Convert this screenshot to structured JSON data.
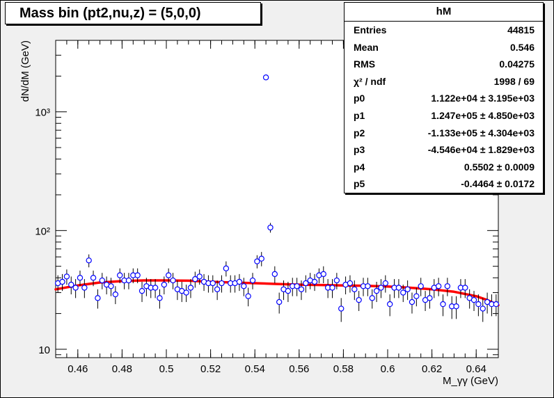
{
  "title": "Mass bin (pt2,nu,z) = (5,0,0)",
  "stats": {
    "name": "hM",
    "rows": [
      {
        "key": "Entries",
        "value": "44815"
      },
      {
        "key": "Mean",
        "value": "0.546"
      },
      {
        "key": "RMS",
        "value": "0.04275"
      },
      {
        "key": "χ² / ndf",
        "value": "1998 / 69"
      },
      {
        "key": "p0",
        "value": "1.122e+04 ± 3.195e+03"
      },
      {
        "key": "p1",
        "value": "1.247e+05 ± 4.850e+03"
      },
      {
        "key": "p2",
        "value": "-1.133e+05 ± 4.304e+03"
      },
      {
        "key": "p3",
        "value": "-4.546e+04 ± 1.829e+03"
      },
      {
        "key": "p4",
        "value": "0.5502 ± 0.0009"
      },
      {
        "key": "p5",
        "value": "-0.4464 ± 0.0172"
      }
    ]
  },
  "chart_data": {
    "type": "scatter",
    "title": "Mass bin (pt2,nu,z) = (5,0,0)",
    "xlabel": "M_γγ (GeV)",
    "ylabel": "dN/dM (GeV)",
    "xlim": [
      0.45,
      0.65
    ],
    "ylim": [
      8.5,
      4000
    ],
    "y_scale": "log",
    "x_ticks": [
      "0.46",
      "0.48",
      "0.5",
      "0.52",
      "0.54",
      "0.56",
      "0.58",
      "0.6",
      "0.62",
      "0.64"
    ],
    "y_ticks": [
      "10",
      "10²",
      "10³"
    ],
    "grid": false,
    "colors": {
      "points": "#0000ff",
      "fit": "#ff0000"
    },
    "series": [
      {
        "x": [
          0.451,
          0.453,
          0.455,
          0.457,
          0.459,
          0.461,
          0.463,
          0.465,
          0.467,
          0.469,
          0.471,
          0.473,
          0.475,
          0.477,
          0.479,
          0.481,
          0.483,
          0.485,
          0.487,
          0.489,
          0.491,
          0.493,
          0.495,
          0.497,
          0.499,
          0.501,
          0.503,
          0.505,
          0.507,
          0.509,
          0.511,
          0.513,
          0.515,
          0.517,
          0.519,
          0.521,
          0.523,
          0.525,
          0.527,
          0.529,
          0.531,
          0.533,
          0.535,
          0.537,
          0.539,
          0.541,
          0.543,
          0.545,
          0.547,
          0.549,
          0.551,
          0.553,
          0.555,
          0.557,
          0.559,
          0.561,
          0.563,
          0.565,
          0.567,
          0.569,
          0.571,
          0.573,
          0.575,
          0.577,
          0.579,
          0.581,
          0.583,
          0.585,
          0.587,
          0.589,
          0.591,
          0.593,
          0.595,
          0.597,
          0.599,
          0.601,
          0.603,
          0.605,
          0.607,
          0.609,
          0.611,
          0.613,
          0.615,
          0.617,
          0.619,
          0.621,
          0.623,
          0.625,
          0.627,
          0.629,
          0.631,
          0.633,
          0.635,
          0.637,
          0.639,
          0.641,
          0.643,
          0.645,
          0.647,
          0.649
        ],
        "y": [
          36,
          37,
          41,
          35,
          33,
          40,
          33,
          56,
          40,
          27,
          38,
          35,
          34,
          29,
          42,
          38,
          38,
          42,
          42,
          31,
          34,
          33,
          33,
          27,
          35,
          42,
          38,
          32,
          31,
          30,
          33,
          39,
          41,
          37,
          36,
          36,
          32,
          36,
          48,
          36,
          36,
          37,
          34,
          28,
          38,
          55,
          58,
          1950,
          106,
          43,
          25,
          32,
          31,
          34,
          34,
          32,
          36,
          38,
          37,
          42,
          43,
          33,
          33,
          38,
          22,
          35,
          36,
          32,
          26,
          34,
          34,
          27,
          31,
          33,
          36,
          24,
          33,
          33,
          30,
          32,
          25,
          28,
          34,
          26,
          27,
          33,
          34,
          24,
          34,
          23,
          23,
          33,
          33,
          27,
          26,
          24,
          22,
          25,
          24,
          24
        ],
        "err": [
          6,
          6,
          6,
          6,
          6,
          6,
          6,
          7,
          6,
          5,
          6,
          6,
          6,
          5,
          6,
          6,
          6,
          6,
          6,
          6,
          6,
          6,
          6,
          5,
          6,
          6,
          6,
          6,
          6,
          5,
          6,
          6,
          6,
          6,
          6,
          6,
          6,
          6,
          7,
          6,
          6,
          6,
          6,
          5,
          6,
          7,
          8,
          44,
          10,
          7,
          5,
          6,
          6,
          6,
          6,
          6,
          6,
          6,
          6,
          6,
          7,
          6,
          6,
          6,
          5,
          6,
          6,
          6,
          5,
          6,
          6,
          5,
          6,
          6,
          6,
          5,
          6,
          6,
          5,
          6,
          5,
          5,
          6,
          5,
          5,
          6,
          6,
          5,
          6,
          5,
          5,
          6,
          6,
          5,
          5,
          5,
          5,
          5,
          5,
          5
        ]
      }
    ],
    "fit": {
      "type": "line",
      "x": [
        0.45,
        0.46,
        0.47,
        0.48,
        0.49,
        0.5,
        0.51,
        0.52,
        0.53,
        0.54,
        0.55,
        0.56,
        0.57,
        0.58,
        0.59,
        0.6,
        0.61,
        0.62,
        0.63,
        0.64,
        0.645,
        0.65
      ],
      "y": [
        32,
        34.5,
        36.5,
        37.5,
        38,
        38,
        37.8,
        37,
        36.5,
        36,
        35.5,
        35,
        34.8,
        34.5,
        34.2,
        33.8,
        33,
        32,
        30.5,
        28,
        26,
        23.5
      ]
    }
  }
}
